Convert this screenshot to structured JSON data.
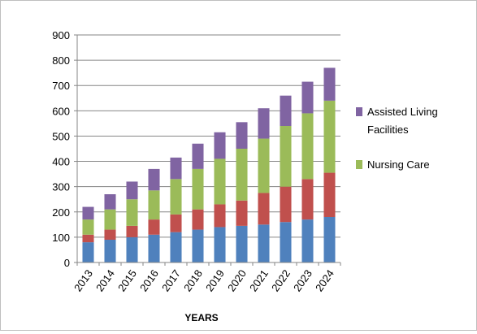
{
  "chart_data": {
    "type": "bar",
    "stacked": true,
    "title": "",
    "xlabel": "YEARS",
    "ylabel": "",
    "ylim": [
      0,
      900
    ],
    "yticks": [
      0,
      100,
      200,
      300,
      400,
      500,
      600,
      700,
      800,
      900
    ],
    "grid": true,
    "legend_position": "right",
    "categories": [
      "2013",
      "2014",
      "2015",
      "2016",
      "2017",
      "2018",
      "2019",
      "2020",
      "2021",
      "2022",
      "2023",
      "2024"
    ],
    "series": [
      {
        "name": "",
        "color": "#4F81BD",
        "values": [
          80,
          90,
          100,
          110,
          120,
          130,
          140,
          145,
          150,
          160,
          170,
          180
        ]
      },
      {
        "name": "",
        "color": "#C0504D",
        "values": [
          30,
          40,
          45,
          60,
          70,
          80,
          90,
          100,
          125,
          140,
          160,
          175
        ]
      },
      {
        "name": "Nursing Care",
        "color": "#9BBB59",
        "values": [
          60,
          80,
          105,
          115,
          140,
          160,
          180,
          205,
          215,
          240,
          260,
          285
        ]
      },
      {
        "name": "Assisted Living Facilities",
        "color": "#8064A2",
        "values": [
          50,
          60,
          70,
          85,
          85,
          100,
          105,
          105,
          120,
          120,
          125,
          130
        ]
      }
    ],
    "legend": [
      {
        "lines": [
          "Assisted Living",
          "Facilities"
        ],
        "color": "#8064A2"
      },
      {
        "lines": [
          "Nursing Care"
        ],
        "color": "#9BBB59"
      }
    ]
  }
}
